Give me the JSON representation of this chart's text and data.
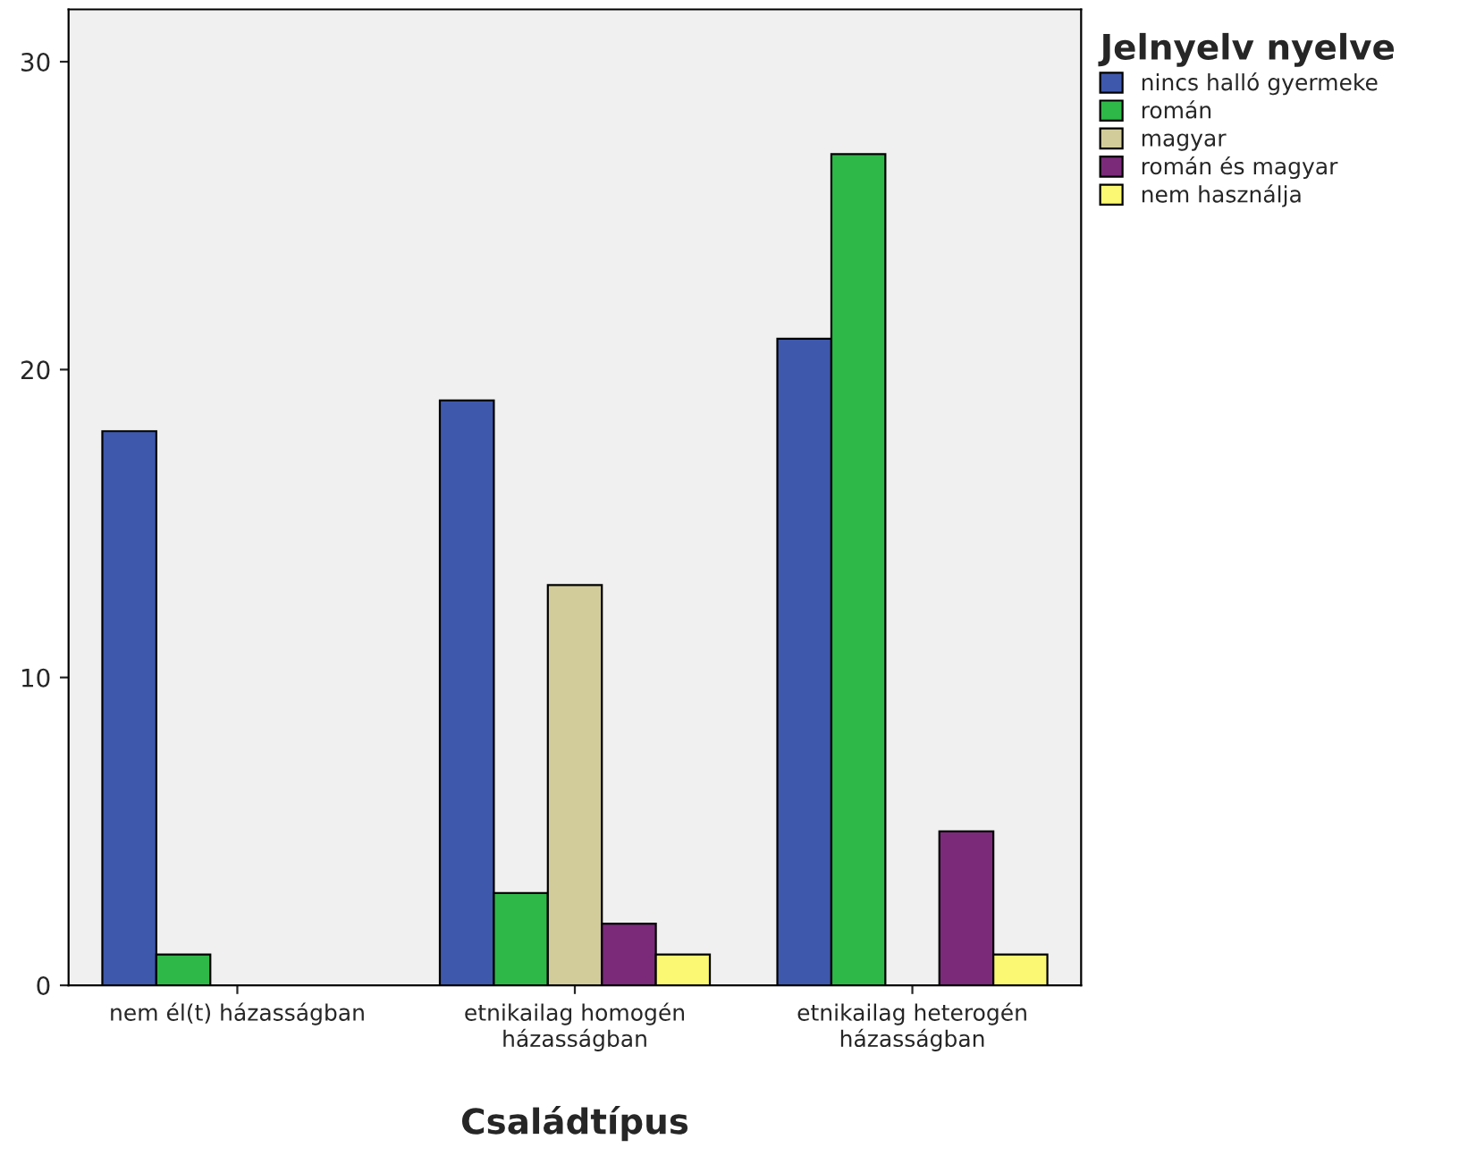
{
  "chart_data": {
    "type": "bar",
    "xlabel": "Családtípus",
    "legend_title": "Jelnyelv nyelve",
    "categories": [
      "nem él(t) házasságban",
      "etnikailag homogén\nházasságban",
      "etnikailag heterogén\nházasságban"
    ],
    "series": [
      {
        "name": "nincs halló gyermeke",
        "color": "#3e58ac",
        "values": [
          18,
          19,
          21
        ]
      },
      {
        "name": "román",
        "color": "#2eb848",
        "values": [
          1,
          3,
          27
        ]
      },
      {
        "name": "magyar",
        "color": "#d2cc9b",
        "values": [
          null,
          13,
          null
        ]
      },
      {
        "name": "román és magyar",
        "color": "#7b2a7a",
        "values": [
          null,
          2,
          5
        ]
      },
      {
        "name": "nem használja",
        "color": "#fbf873",
        "values": [
          null,
          1,
          1
        ]
      }
    ],
    "ylim": [
      0,
      31.7
    ],
    "yticks": [
      0,
      10,
      20,
      30
    ],
    "grid": false,
    "legend": "top right"
  }
}
